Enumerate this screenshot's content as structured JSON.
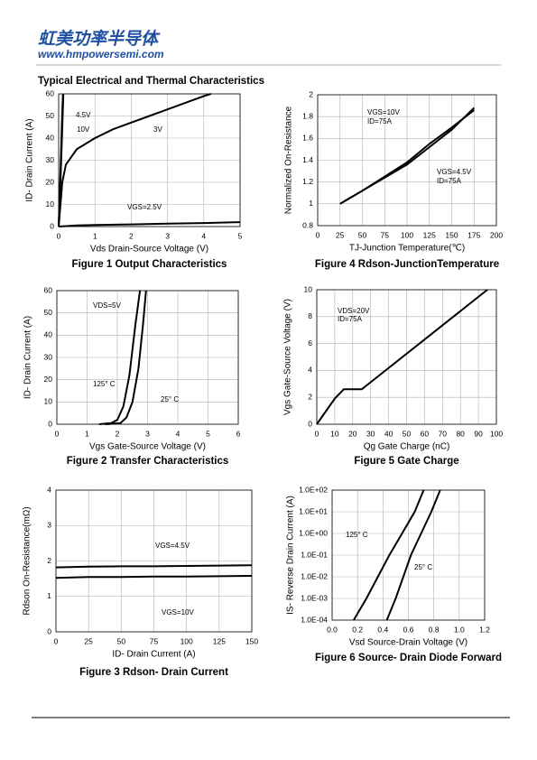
{
  "header": {
    "brand": "虹美功率半导体",
    "website": "www.hmpowersemi.com"
  },
  "section_title": "Typical Electrical and Thermal Characteristics",
  "chart_data": [
    {
      "type": "line",
      "title": "Figure 1 Output Characteristics",
      "x_label": "Vds Drain-Source Voltage (V)",
      "y_label": "ID- Drain Current (A)",
      "xlim": [
        0,
        5
      ],
      "xticks": [
        0,
        1,
        2,
        3,
        4,
        5
      ],
      "ylim": [
        0,
        60
      ],
      "yticks": [
        0,
        10,
        20,
        30,
        40,
        50,
        60
      ],
      "grid": true,
      "annotations": [
        "4.5V",
        "10V",
        "3V",
        "VGS=2.5V"
      ],
      "series": [
        {
          "color": "#000000",
          "x": [
            0,
            0.05,
            0.1,
            0.13
          ],
          "values": [
            0,
            20,
            45,
            60
          ]
        },
        {
          "color": "#000000",
          "x": [
            0,
            0.05,
            0.1,
            0.12
          ],
          "values": [
            0,
            25,
            52,
            60
          ]
        },
        {
          "color": "#000000",
          "x": [
            0,
            0.1,
            0.2,
            0.5,
            1,
            1.5,
            2,
            2.5,
            3,
            3.5,
            4,
            4.2
          ],
          "values": [
            0,
            20,
            28,
            35,
            40,
            44,
            47,
            50,
            53,
            56,
            59,
            60
          ]
        },
        {
          "color": "#000000",
          "x": [
            0,
            0.5,
            1,
            2,
            3,
            4,
            5
          ],
          "values": [
            0,
            0.5,
            0.7,
            1,
            1.3,
            1.6,
            2
          ]
        }
      ]
    },
    {
      "type": "line",
      "title": "Figure 4 Rdson-JunctionTemperature",
      "x_label": "TJ-Junction Temperature(℃)",
      "y_label": "Normalized On-Resistance",
      "xlim": [
        0,
        200
      ],
      "xticks": [
        0,
        25,
        50,
        75,
        100,
        125,
        150,
        175,
        200
      ],
      "ylim": [
        0.8,
        2
      ],
      "yticks": [
        0.8,
        1,
        1.2,
        1.4,
        1.6,
        1.8,
        2
      ],
      "grid": true,
      "annotations": [
        "VGS=10V",
        "ID=75A",
        "VGS=4.5V",
        "ID=75A"
      ],
      "series": [
        {
          "color": "#000000",
          "x": [
            25,
            50,
            75,
            100,
            125,
            150,
            175
          ],
          "values": [
            1.0,
            1.12,
            1.25,
            1.38,
            1.55,
            1.7,
            1.86
          ]
        },
        {
          "color": "#000000",
          "x": [
            25,
            50,
            75,
            100,
            125,
            150,
            175
          ],
          "values": [
            1.0,
            1.12,
            1.24,
            1.36,
            1.52,
            1.68,
            1.88
          ]
        }
      ]
    },
    {
      "type": "line",
      "title": "Figure 2 Transfer Characteristics",
      "x_label": "Vgs Gate-Source Voltage (V)",
      "y_label": "ID- Drain Current (A)",
      "xlim": [
        0,
        6
      ],
      "xticks": [
        0,
        1,
        2,
        3,
        4,
        5,
        6
      ],
      "ylim": [
        0,
        60
      ],
      "yticks": [
        0,
        10,
        20,
        30,
        40,
        50,
        60
      ],
      "grid": true,
      "annotations": [
        "VDS=5V",
        "125° C",
        "25° C"
      ],
      "series": [
        {
          "color": "#000000",
          "x": [
            1.4,
            1.8,
            2.0,
            2.2,
            2.4,
            2.6,
            2.75
          ],
          "values": [
            0,
            0.5,
            2,
            8,
            22,
            45,
            60
          ]
        },
        {
          "color": "#000000",
          "x": [
            1.6,
            2.1,
            2.3,
            2.5,
            2.7,
            2.85,
            2.95
          ],
          "values": [
            0,
            0.5,
            3,
            10,
            25,
            45,
            60
          ]
        }
      ]
    },
    {
      "type": "line",
      "title": "Figure 5 Gate Charge",
      "x_label": "Qg Gate Charge (nC)",
      "y_label": "Vgs Gate-Source Voltage (V)",
      "xlim": [
        0,
        100
      ],
      "xticks": [
        0,
        10,
        20,
        30,
        40,
        50,
        60,
        70,
        80,
        90,
        100
      ],
      "ylim": [
        0,
        10
      ],
      "yticks": [
        0,
        2,
        4,
        6,
        8,
        10
      ],
      "grid": true,
      "annotations": [
        "VDS=20V",
        "ID=75A"
      ],
      "series": [
        {
          "color": "#000000",
          "x": [
            0,
            10,
            15,
            25,
            95
          ],
          "values": [
            0,
            1.9,
            2.6,
            2.6,
            10
          ]
        }
      ]
    },
    {
      "type": "line",
      "title": "Figure 3 Rdson- Drain Current",
      "x_label": "ID- Drain Current (A)",
      "y_label": "Rdson On-Resistance(mΩ)",
      "xlim": [
        0,
        150
      ],
      "xticks": [
        0,
        25,
        50,
        75,
        100,
        125,
        150
      ],
      "ylim": [
        0,
        4
      ],
      "yticks": [
        0,
        1,
        2,
        3,
        4
      ],
      "grid": true,
      "annotations": [
        "VGS=4.5V",
        "VGS=10V"
      ],
      "series": [
        {
          "color": "#000000",
          "x": [
            0,
            25,
            50,
            75,
            100,
            125,
            150
          ],
          "values": [
            1.82,
            1.84,
            1.85,
            1.85,
            1.86,
            1.87,
            1.88
          ]
        },
        {
          "color": "#000000",
          "x": [
            0,
            25,
            50,
            75,
            100,
            125,
            150
          ],
          "values": [
            1.52,
            1.55,
            1.55,
            1.56,
            1.56,
            1.57,
            1.58
          ]
        }
      ]
    },
    {
      "type": "line",
      "title": "Figure 6 Source- Drain Diode Forward",
      "x_label": "Vsd Source-Drain Voltage (V)",
      "y_label": "IS- Reverse Drain Current (A)",
      "xlim": [
        0,
        1.2
      ],
      "xticks": [
        {
          "value": 0,
          "label": "0.0"
        },
        0.2,
        0.4,
        0.6,
        0.8,
        {
          "value": 1,
          "label": "1.0"
        },
        1.2
      ],
      "ylim": [
        0.0001,
        100
      ],
      "ylog": true,
      "yticks": [
        {
          "value": 0.0001,
          "label": "1.0E-04"
        },
        {
          "value": 0.001,
          "label": "1.0E-03"
        },
        {
          "value": 0.01,
          "label": "1.0E-02"
        },
        {
          "value": 0.1,
          "label": "1.0E-01"
        },
        {
          "value": 1,
          "label": "1.0E+00"
        },
        {
          "value": 10,
          "label": "1.0E+01"
        },
        {
          "value": 100,
          "label": "1.0E+02"
        }
      ],
      "grid": true,
      "annotations": [
        "125° C",
        "25° C"
      ],
      "series": [
        {
          "color": "#000000",
          "x": [
            0.17,
            0.27,
            0.36,
            0.45,
            0.55,
            0.65,
            0.72
          ],
          "values": [
            0.0001,
            0.001,
            0.01,
            0.1,
            1,
            10,
            100
          ]
        },
        {
          "color": "#000000",
          "x": [
            0.43,
            0.5,
            0.56,
            0.62,
            0.7,
            0.78,
            0.85
          ],
          "values": [
            0.0001,
            0.001,
            0.01,
            0.1,
            1,
            10,
            100
          ]
        }
      ]
    }
  ]
}
